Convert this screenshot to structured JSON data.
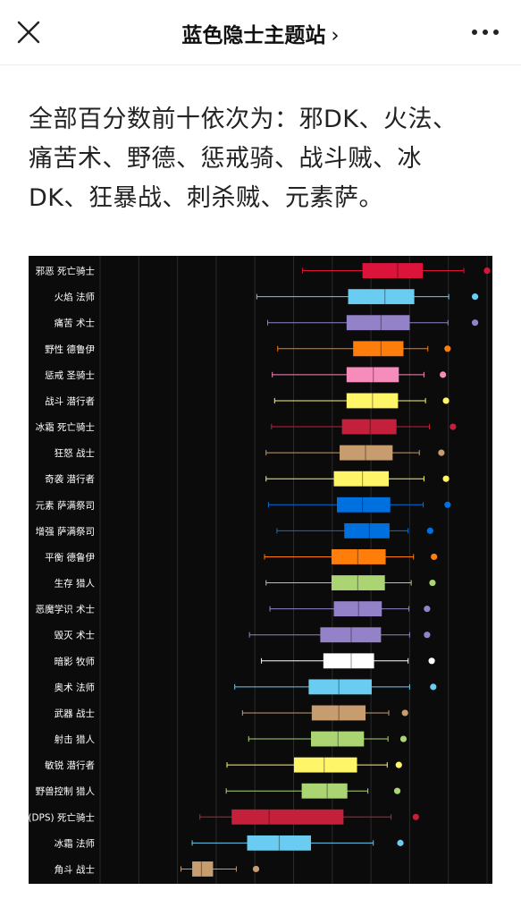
{
  "header": {
    "title": "蓝色隐士主题站",
    "chevron": "›",
    "close_icon": "close-icon",
    "more_icon": "more-dots-icon"
  },
  "article": {
    "lines": [
      "全部百分数前十依次为：邪DK、火法、",
      "痛苦术、野德、惩戒骑、战斗贼、冰",
      "DK、狂暴战、刺杀贼、元素萨。"
    ]
  },
  "chart_data": {
    "type": "boxplot",
    "title": "",
    "xlabel": "",
    "ylabel": "",
    "xlim": [
      0,
      100
    ],
    "background": "#0b0b0b",
    "grid": true,
    "categories": [
      "邪恶 死亡骑士",
      "火焰 法师",
      "痛苦 术士",
      "野性 德鲁伊",
      "惩戒 圣骑士",
      "战斗 潜行者",
      "冰霜 死亡骑士",
      "狂怒 战士",
      "奇袭 潜行者",
      "元素 萨满祭司",
      "增强 萨满祭司",
      "平衡 德鲁伊",
      "生存 猎人",
      "恶魔学识 术士",
      "毁灭 术士",
      "暗影 牧师",
      "奥术 法师",
      "武器 战士",
      "射击 猎人",
      "敏锐 潜行者",
      "野兽控制 猎人",
      "(DPS) 死亡骑士",
      "冰霜 法师",
      "角斗 战士"
    ],
    "series": [
      {
        "color": "#dc143c",
        "min": 52.3,
        "q1": 67.8,
        "median": 76.9,
        "q3": 83.4,
        "max": 94.0,
        "outlier": 100.0
      },
      {
        "color": "#69ccf0",
        "min": 40.5,
        "q1": 64.1,
        "median": 73.6,
        "q3": 81.2,
        "max": 90.1,
        "outlier": 96.9
      },
      {
        "color": "#9482c9",
        "min": 43.3,
        "q1": 63.7,
        "median": 72.6,
        "q3": 80.0,
        "max": 89.9,
        "outlier": 96.9
      },
      {
        "color": "#ff7d0a",
        "min": 45.9,
        "q1": 65.4,
        "median": 72.6,
        "q3": 78.4,
        "max": 84.7,
        "outlier": 89.8
      },
      {
        "color": "#f58cba",
        "min": 44.5,
        "q1": 63.7,
        "median": 70.6,
        "q3": 77.2,
        "max": 83.7,
        "outlier": 88.6
      },
      {
        "color": "#fff569",
        "min": 45.1,
        "q1": 63.7,
        "median": 70.4,
        "q3": 77.0,
        "max": 84.1,
        "outlier": 89.4
      },
      {
        "color": "#c41f3b",
        "min": 44.3,
        "q1": 62.5,
        "median": 69.8,
        "q3": 76.6,
        "max": 85.1,
        "outlier": 91.2
      },
      {
        "color": "#c79c6e",
        "min": 42.9,
        "q1": 61.9,
        "median": 68.6,
        "q3": 75.6,
        "max": 82.5,
        "outlier": 88.2
      },
      {
        "color": "#fff569",
        "min": 42.9,
        "q1": 60.4,
        "median": 67.8,
        "q3": 74.6,
        "max": 83.7,
        "outlier": 89.4
      },
      {
        "color": "#0070de",
        "min": 43.5,
        "q1": 61.2,
        "median": 67.8,
        "q3": 75.0,
        "max": 83.5,
        "outlier": 89.8
      },
      {
        "color": "#0070de",
        "min": 45.7,
        "q1": 63.1,
        "median": 69.6,
        "q3": 74.8,
        "max": 79.6,
        "outlier": 85.3
      },
      {
        "color": "#ff7d0a",
        "min": 42.5,
        "q1": 59.8,
        "median": 66.6,
        "q3": 73.8,
        "max": 81.0,
        "outlier": 86.3
      },
      {
        "color": "#abd473",
        "min": 42.9,
        "q1": 59.8,
        "median": 66.6,
        "q3": 73.6,
        "max": 80.4,
        "outlier": 85.9
      },
      {
        "color": "#9482c9",
        "min": 43.9,
        "q1": 60.4,
        "median": 66.8,
        "q3": 72.8,
        "max": 79.8,
        "outlier": 84.5
      },
      {
        "color": "#9482c9",
        "min": 38.6,
        "q1": 56.9,
        "median": 64.9,
        "q3": 72.6,
        "max": 80.0,
        "outlier": 84.5
      },
      {
        "color": "#ffffff",
        "min": 41.7,
        "q1": 57.7,
        "median": 64.9,
        "q3": 70.8,
        "max": 79.6,
        "outlier": 85.7
      },
      {
        "color": "#69ccf0",
        "min": 34.8,
        "q1": 53.9,
        "median": 61.7,
        "q3": 70.2,
        "max": 80.0,
        "outlier": 86.1
      },
      {
        "color": "#c79c6e",
        "min": 36.8,
        "q1": 54.7,
        "median": 61.7,
        "q3": 68.6,
        "max": 74.6,
        "outlier": 78.8
      },
      {
        "color": "#abd473",
        "min": 38.4,
        "q1": 54.5,
        "median": 61.5,
        "q3": 68.2,
        "max": 74.4,
        "outlier": 78.4
      },
      {
        "color": "#fff569",
        "min": 32.8,
        "q1": 50.1,
        "median": 57.9,
        "q3": 66.4,
        "max": 74.2,
        "outlier": 77.2
      },
      {
        "color": "#abd473",
        "min": 32.6,
        "q1": 52.1,
        "median": 58.7,
        "q3": 63.9,
        "max": 69.2,
        "outlier": 76.8
      },
      {
        "color": "#c41f3b",
        "min": 25.8,
        "q1": 34.0,
        "median": 43.7,
        "q3": 62.9,
        "max": 75.2,
        "outlier": 81.6
      },
      {
        "color": "#69ccf0",
        "min": 23.8,
        "q1": 38.0,
        "median": 46.3,
        "q3": 54.5,
        "max": 70.6,
        "outlier": 77.6
      },
      {
        "color": "#c79c6e",
        "min": 20.9,
        "q1": 23.8,
        "median": 26.2,
        "q3": 29.2,
        "max": 35.2,
        "outlier": 40.3
      }
    ]
  }
}
